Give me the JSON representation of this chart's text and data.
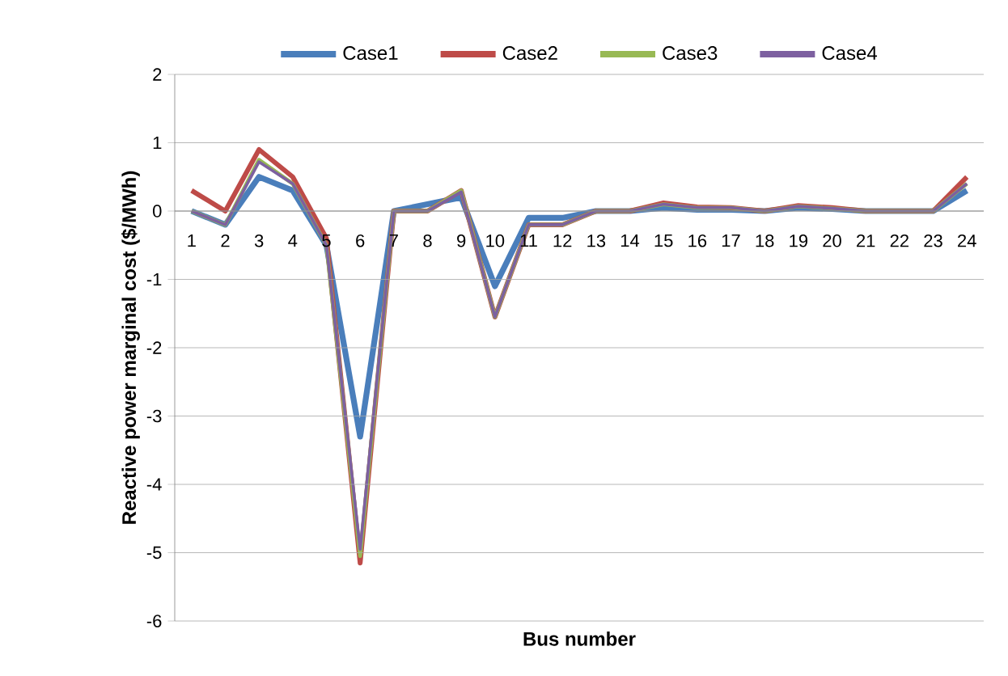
{
  "chart_data": {
    "type": "line",
    "xlabel": "Bus number",
    "ylabel": "Reactive power marginal cost ($/MWh)",
    "categories": [
      "1",
      "2",
      "3",
      "4",
      "5",
      "6",
      "7",
      "8",
      "9",
      "10",
      "11",
      "12",
      "13",
      "14",
      "15",
      "16",
      "17",
      "18",
      "19",
      "20",
      "21",
      "22",
      "23",
      "24"
    ],
    "series": [
      {
        "name": "Case1",
        "color": "#4a7ebb",
        "values": [
          0,
          -0.2,
          0.5,
          0.3,
          -0.5,
          -3.3,
          0,
          0.1,
          0.2,
          -1.1,
          -0.1,
          -0.1,
          0,
          0,
          0.05,
          0.02,
          0.02,
          0,
          0.05,
          0.03,
          0,
          0,
          0,
          0.3
        ]
      },
      {
        "name": "Case2",
        "color": "#be4b48",
        "values": [
          0.3,
          0,
          0.9,
          0.5,
          -0.4,
          -5.15,
          0,
          0,
          0.3,
          -1.55,
          -0.2,
          -0.2,
          0,
          0,
          0.12,
          0.06,
          0.05,
          0,
          0.08,
          0.05,
          0,
          0,
          0,
          0.5
        ]
      },
      {
        "name": "Case3",
        "color": "#98b954",
        "values": [
          0,
          -0.2,
          0.75,
          0.4,
          -0.5,
          -5.05,
          0,
          0,
          0.3,
          -1.55,
          -0.2,
          -0.2,
          0,
          0,
          0.1,
          0.05,
          0.05,
          0,
          0.07,
          0.04,
          0,
          0,
          0,
          0.4
        ]
      },
      {
        "name": "Case4",
        "color": "#7d60a0",
        "values": [
          0,
          -0.2,
          0.72,
          0.4,
          -0.5,
          -4.95,
          0,
          0,
          0.28,
          -1.55,
          -0.2,
          -0.2,
          0,
          0,
          0.1,
          0.05,
          0.05,
          0,
          0.07,
          0.04,
          0,
          0,
          0,
          0.4
        ]
      }
    ],
    "ylim": [
      -6,
      2
    ],
    "yticks": [
      -6,
      -5,
      -4,
      -3,
      -2,
      -1,
      0,
      1,
      2
    ],
    "grid": "y",
    "legend": "top",
    "marker": "none",
    "line_style": "solid"
  }
}
